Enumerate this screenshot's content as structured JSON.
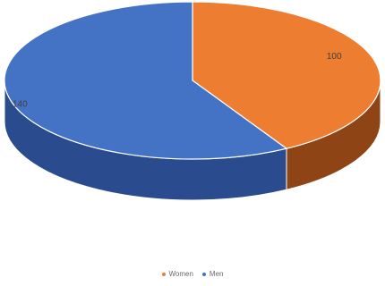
{
  "chart_data": {
    "type": "pie",
    "style": "3d",
    "slices": [
      {
        "label": "Women",
        "value": 100,
        "data_label": "100",
        "color": "#ED7D31",
        "side_color": "#8F4416"
      },
      {
        "label": "Men",
        "value": 140,
        "data_label": "140",
        "color": "#4472C4",
        "side_color": "#2A4C8E"
      }
    ],
    "legend": {
      "position": "bottom",
      "entries": [
        "Women",
        "Men"
      ]
    }
  }
}
